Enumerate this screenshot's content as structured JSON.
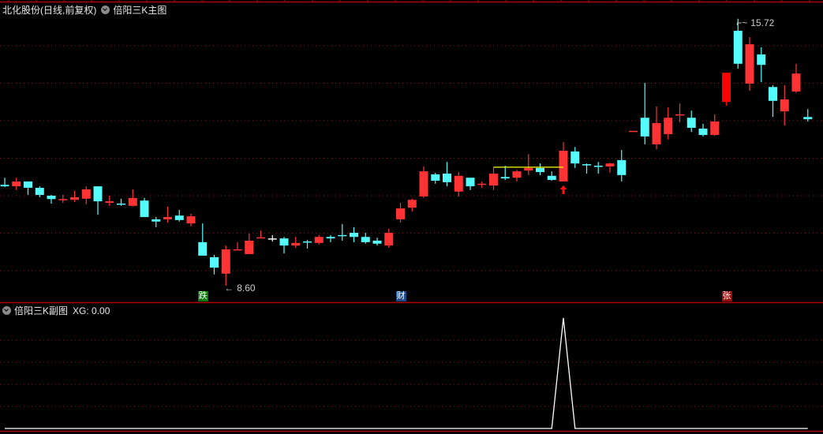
{
  "main_panel": {
    "stock_title": "北化股份(日线,前复权)",
    "indicator_name": "倍阳三K主图",
    "high_label": "15.72",
    "low_label": "8.60",
    "signals": [
      {
        "index": 17,
        "text": "跌",
        "color": "#0a7a0a"
      },
      {
        "index": 34,
        "text": "财",
        "color": "#1a4a8a"
      },
      {
        "index": 62,
        "text": "张",
        "color": "#9a0a0a"
      }
    ],
    "arrow_index": 48,
    "yellow_line": {
      "from": 42,
      "to": 48,
      "price": 11.76
    }
  },
  "sub_panel": {
    "indicator_name": "倍阳三K副图",
    "readout": "XG: 0.00",
    "xg_signal_index": 48
  },
  "colors": {
    "up": "#ff3333",
    "down": "#54fcfc",
    "grid": "#8b1010",
    "border": "#b00000",
    "yellow": "#ffff00",
    "line": "#ffffff"
  },
  "chart_data": {
    "type": "candlestick",
    "price_gridlines": [
      15,
      14,
      13,
      12,
      11,
      10,
      9
    ],
    "ohlc": [
      [
        11.29,
        11.48,
        11.23,
        11.25
      ],
      [
        11.25,
        11.48,
        11.15,
        11.38
      ],
      [
        11.38,
        11.38,
        11.02,
        11.21
      ],
      [
        11.21,
        11.25,
        10.96,
        11.02
      ],
      [
        11.0,
        11.02,
        10.79,
        10.91
      ],
      [
        10.9,
        11.02,
        10.81,
        10.91
      ],
      [
        10.89,
        11.13,
        10.83,
        10.96
      ],
      [
        10.92,
        11.25,
        10.77,
        11.17
      ],
      [
        11.25,
        11.25,
        10.49,
        10.85
      ],
      [
        10.81,
        11.0,
        10.73,
        10.85
      ],
      [
        10.79,
        10.92,
        10.73,
        10.77
      ],
      [
        10.73,
        11.17,
        10.71,
        10.94
      ],
      [
        10.87,
        10.94,
        10.43,
        10.43
      ],
      [
        10.37,
        10.43,
        10.16,
        10.31
      ],
      [
        10.37,
        10.71,
        10.28,
        10.43
      ],
      [
        10.47,
        10.62,
        10.31,
        10.35
      ],
      [
        10.26,
        10.52,
        10.18,
        10.45
      ],
      [
        9.76,
        10.26,
        9.4,
        9.4
      ],
      [
        9.36,
        9.42,
        8.9,
        9.08
      ],
      [
        8.92,
        9.67,
        8.6,
        9.57
      ],
      [
        9.56,
        9.76,
        9.56,
        9.57
      ],
      [
        9.44,
        9.99,
        9.44,
        9.8
      ],
      [
        9.88,
        10.07,
        9.88,
        9.89
      ],
      [
        9.86,
        9.95,
        9.78,
        9.86
      ],
      [
        9.86,
        9.9,
        9.46,
        9.67
      ],
      [
        9.67,
        9.9,
        9.61,
        9.74
      ],
      [
        9.78,
        9.82,
        9.59,
        9.76
      ],
      [
        9.74,
        9.95,
        9.7,
        9.9
      ],
      [
        9.9,
        9.95,
        9.76,
        9.86
      ],
      [
        9.95,
        10.24,
        9.8,
        9.93
      ],
      [
        10.01,
        10.16,
        9.76,
        9.9
      ],
      [
        9.9,
        10.01,
        9.72,
        9.76
      ],
      [
        9.8,
        9.88,
        9.67,
        9.72
      ],
      [
        9.67,
        10.12,
        9.61,
        10.01
      ],
      [
        10.37,
        10.81,
        10.28,
        10.66
      ],
      [
        10.68,
        10.92,
        10.58,
        10.89
      ],
      [
        10.98,
        11.78,
        10.94,
        11.65
      ],
      [
        11.57,
        11.61,
        11.32,
        11.4
      ],
      [
        11.59,
        11.9,
        11.25,
        11.36
      ],
      [
        11.11,
        11.63,
        10.98,
        11.53
      ],
      [
        11.48,
        11.48,
        11.15,
        11.25
      ],
      [
        11.31,
        11.38,
        11.21,
        11.32
      ],
      [
        11.27,
        11.76,
        11.15,
        11.59
      ],
      [
        11.5,
        11.8,
        11.42,
        11.46
      ],
      [
        11.48,
        11.69,
        11.38,
        11.65
      ],
      [
        11.67,
        12.11,
        11.55,
        11.74
      ],
      [
        11.74,
        11.86,
        11.55,
        11.63
      ],
      [
        11.53,
        11.65,
        11.4,
        11.42
      ],
      [
        11.38,
        12.43,
        11.38,
        12.2
      ],
      [
        12.18,
        12.3,
        11.74,
        11.86
      ],
      [
        11.84,
        11.86,
        11.59,
        11.82
      ],
      [
        11.8,
        11.9,
        11.59,
        11.78
      ],
      [
        11.78,
        11.88,
        11.61,
        11.86
      ],
      [
        11.95,
        12.22,
        11.38,
        11.55
      ],
      [
        12.72,
        12.73,
        12.72,
        12.73
      ],
      [
        13.08,
        14.01,
        12.37,
        12.58
      ],
      [
        12.37,
        13.38,
        12.24,
        12.94
      ],
      [
        12.64,
        13.36,
        12.5,
        13.08
      ],
      [
        13.16,
        13.46,
        12.96,
        13.17
      ],
      [
        13.08,
        13.27,
        12.7,
        12.81
      ],
      [
        12.79,
        12.92,
        12.58,
        12.62
      ],
      [
        12.62,
        13.17,
        12.6,
        12.98
      ],
      [
        13.5,
        14.28,
        13.4,
        14.28
      ],
      [
        15.4,
        15.72,
        14.39,
        14.52
      ],
      [
        13.99,
        15.23,
        13.8,
        15.04
      ],
      [
        14.77,
        14.96,
        14.03,
        14.49
      ],
      [
        13.9,
        13.95,
        13.1,
        13.53
      ],
      [
        13.25,
        13.95,
        12.87,
        13.57
      ],
      [
        13.78,
        14.52,
        13.74,
        14.26
      ],
      [
        13.1,
        13.31,
        12.98,
        13.04
      ]
    ],
    "xg": "0 for all bars except 1 at signal index"
  }
}
